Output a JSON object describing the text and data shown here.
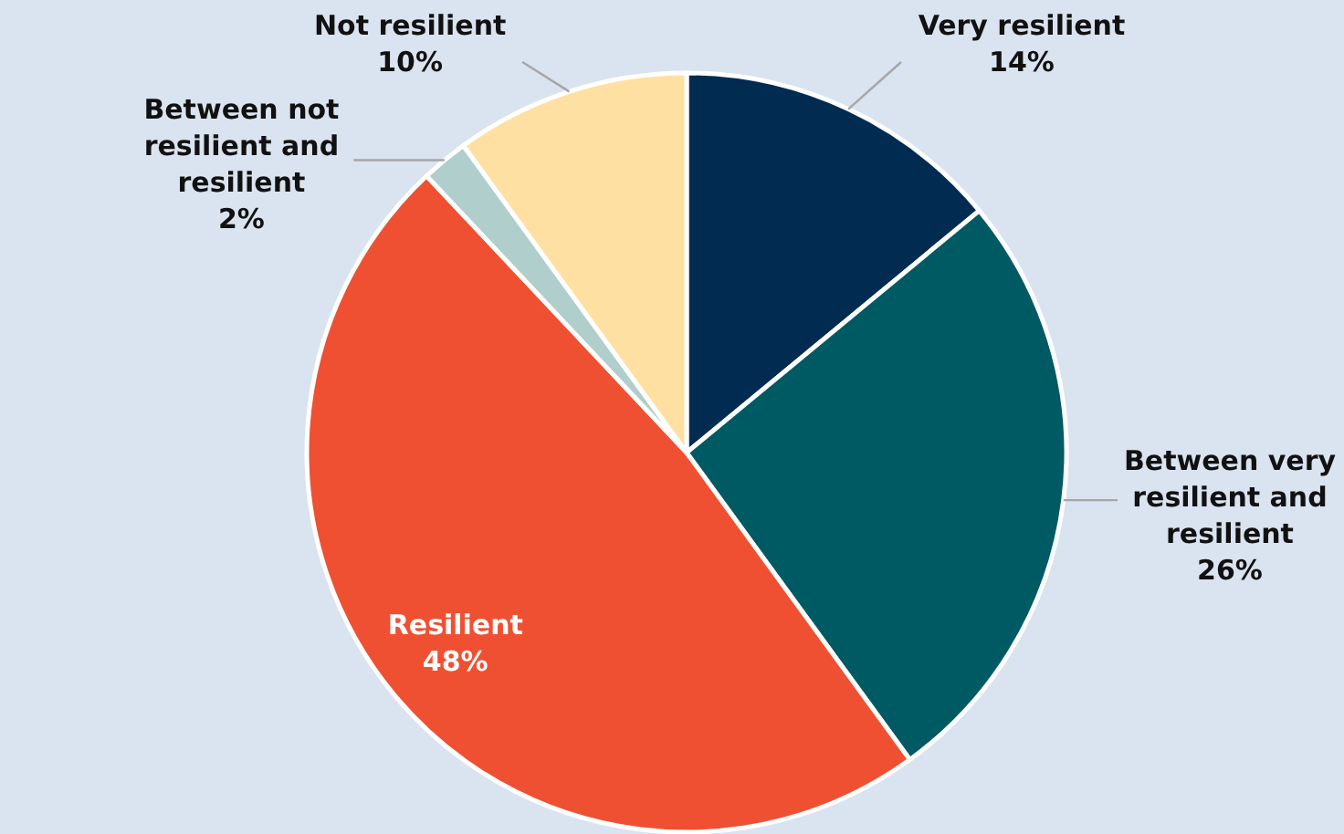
{
  "chart_data": {
    "type": "pie",
    "categories": [
      "Very resilient",
      "Between very resilient and resilient",
      "Resilient",
      "Between not resilient and resilient",
      "Not resilient"
    ],
    "values": [
      14,
      26,
      48,
      2,
      10
    ],
    "colors": [
      "#022b52",
      "#005a63",
      "#f05032",
      "#b0cecc",
      "#ffe0a3"
    ],
    "value_labels": [
      "14%",
      "26%",
      "48%",
      "2%",
      "10%"
    ]
  }
}
